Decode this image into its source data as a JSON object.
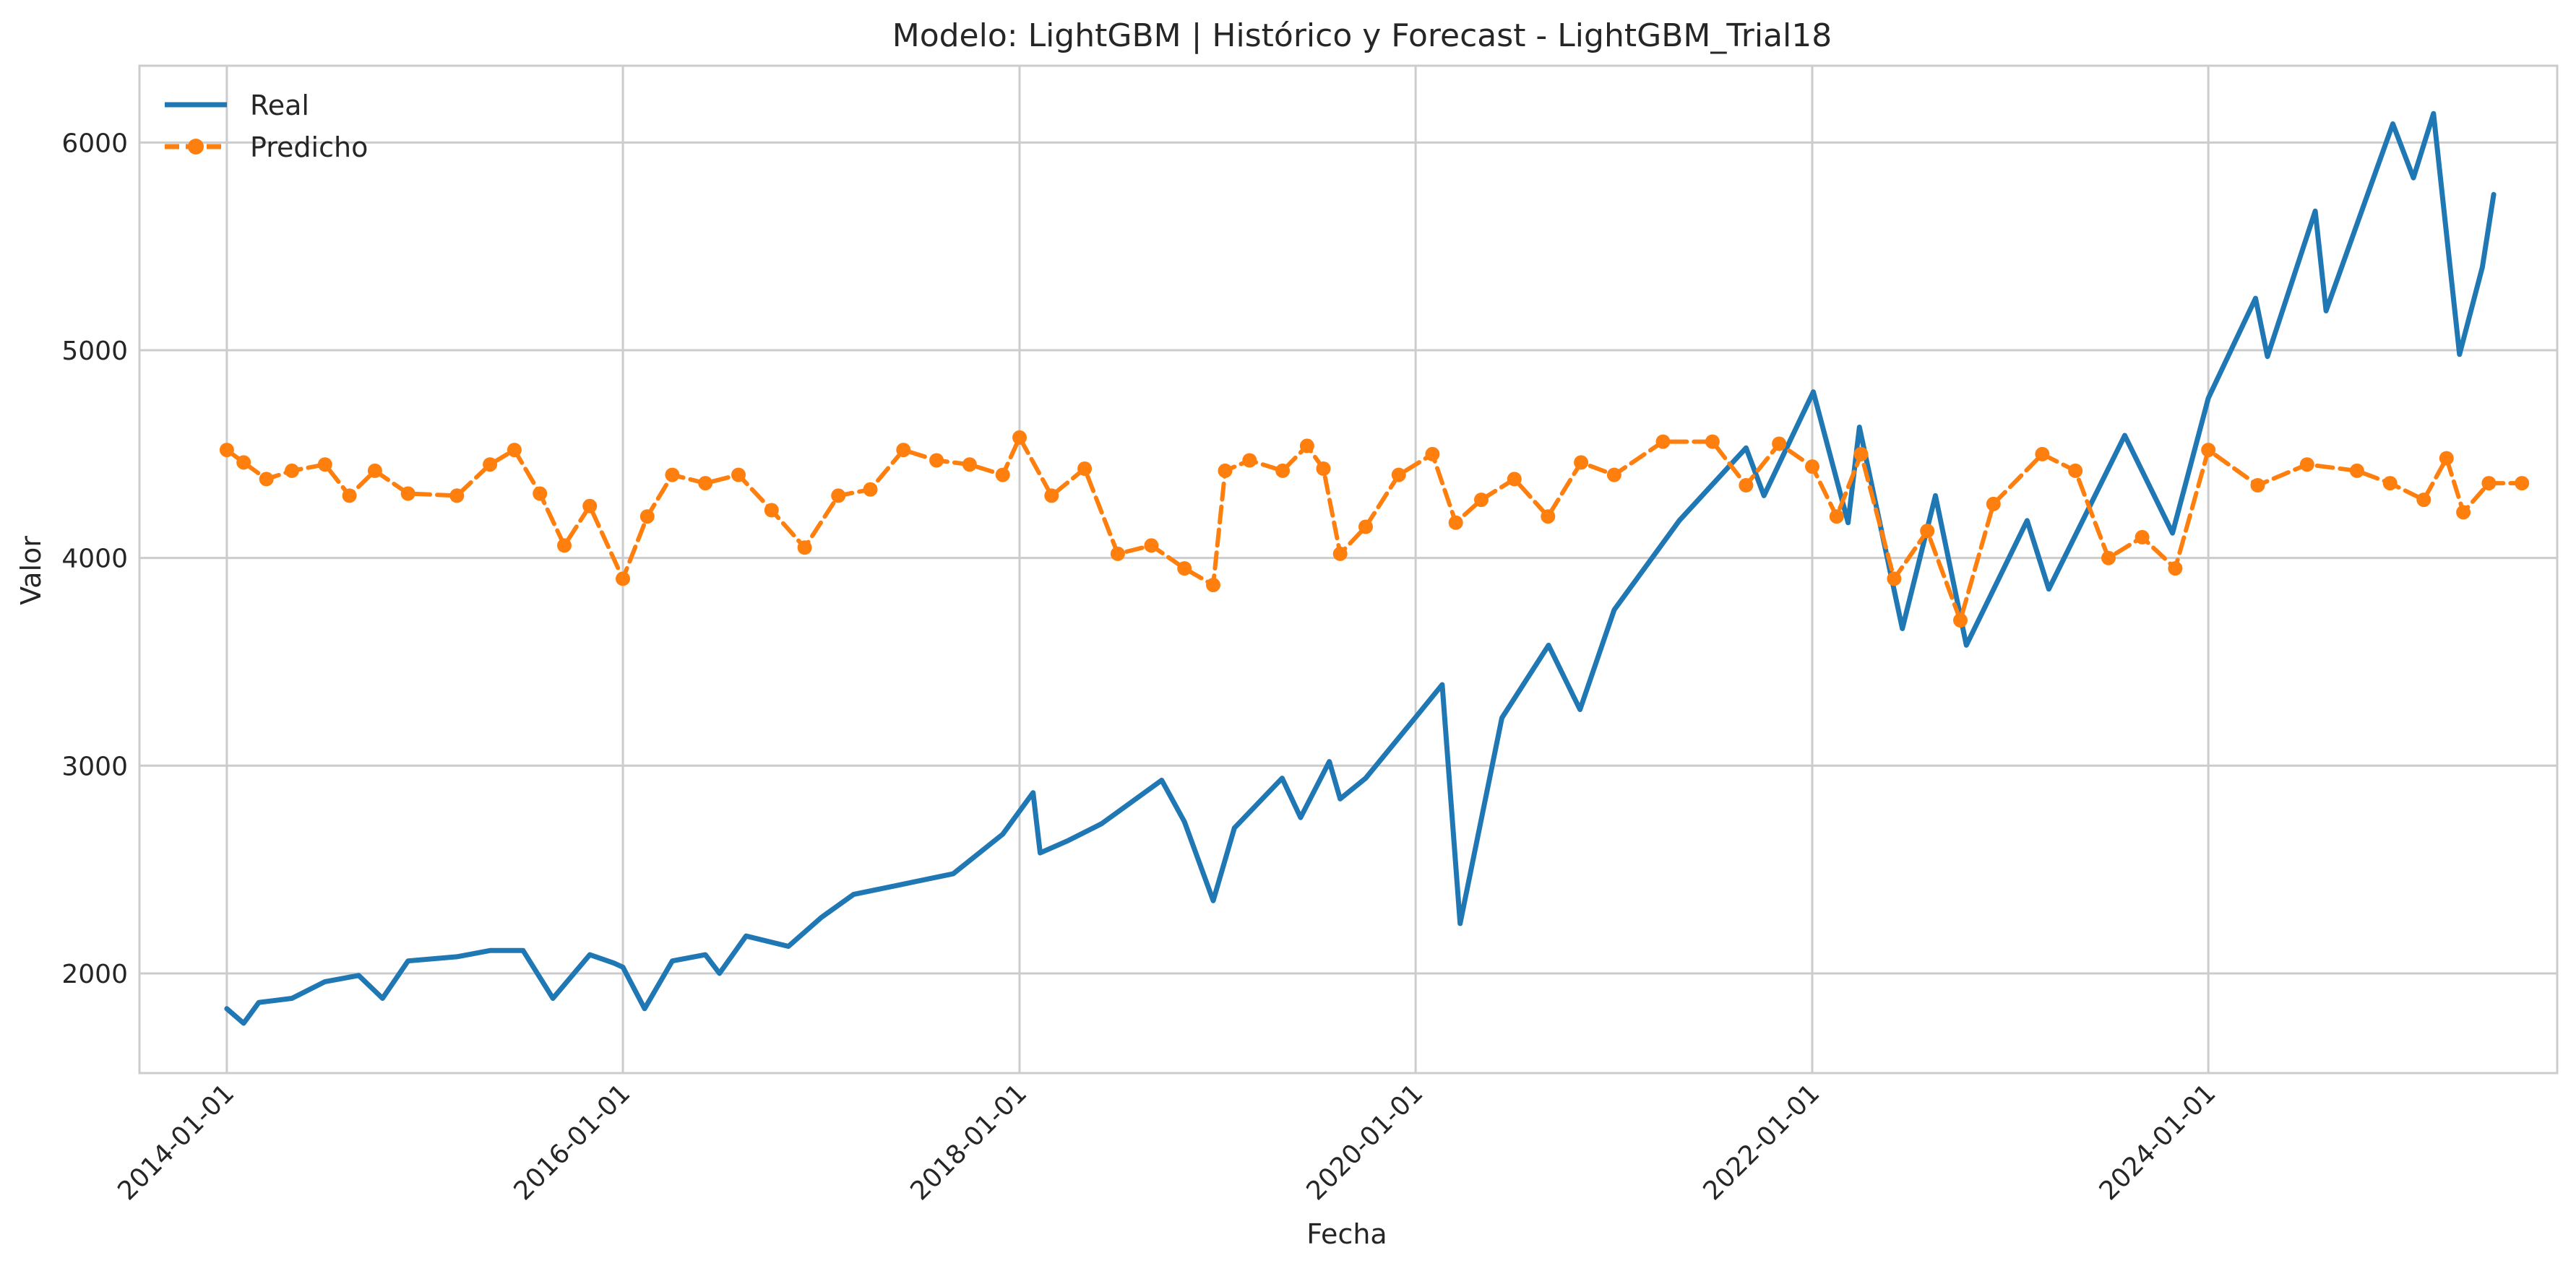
{
  "chart_data": {
    "type": "line",
    "title": "Modelo: LightGBM | Histórico y Forecast - LightGBM_Trial18",
    "xlabel": "Fecha",
    "ylabel": "Valor",
    "x_range": [
      "2013-07-24",
      "2025-10-05"
    ],
    "ylim": [
      1520,
      6370
    ],
    "x_ticks": [
      "2014-01-01",
      "2016-01-01",
      "2018-01-01",
      "2020-01-01",
      "2022-01-01",
      "2024-01-01"
    ],
    "y_ticks": [
      2000,
      3000,
      4000,
      5000,
      6000
    ],
    "grid": true,
    "legend_position": "top-left",
    "series": [
      {
        "name": "Real",
        "color": "#1f77b4",
        "style": "solid",
        "points": [
          [
            "2014-01-01",
            1830
          ],
          [
            "2014-02-01",
            1760
          ],
          [
            "2014-03-01",
            1860
          ],
          [
            "2014-05-01",
            1880
          ],
          [
            "2014-07-01",
            1960
          ],
          [
            "2014-09-01",
            1990
          ],
          [
            "2014-10-15",
            1880
          ],
          [
            "2014-12-01",
            2060
          ],
          [
            "2015-03-01",
            2080
          ],
          [
            "2015-05-01",
            2110
          ],
          [
            "2015-07-01",
            2110
          ],
          [
            "2015-08-25",
            1880
          ],
          [
            "2015-11-01",
            2090
          ],
          [
            "2015-12-15",
            2050
          ],
          [
            "2016-01-01",
            2030
          ],
          [
            "2016-02-10",
            1830
          ],
          [
            "2016-04-01",
            2060
          ],
          [
            "2016-06-01",
            2090
          ],
          [
            "2016-06-27",
            2000
          ],
          [
            "2016-08-15",
            2180
          ],
          [
            "2016-11-01",
            2130
          ],
          [
            "2017-01-01",
            2270
          ],
          [
            "2017-03-01",
            2380
          ],
          [
            "2017-06-01",
            2430
          ],
          [
            "2017-09-01",
            2480
          ],
          [
            "2017-12-01",
            2670
          ],
          [
            "2018-01-26",
            2870
          ],
          [
            "2018-02-08",
            2580
          ],
          [
            "2018-04-01",
            2640
          ],
          [
            "2018-06-01",
            2720
          ],
          [
            "2018-09-20",
            2930
          ],
          [
            "2018-11-01",
            2730
          ],
          [
            "2018-12-24",
            2350
          ],
          [
            "2019-02-01",
            2700
          ],
          [
            "2019-04-30",
            2940
          ],
          [
            "2019-06-03",
            2750
          ],
          [
            "2019-07-26",
            3020
          ],
          [
            "2019-08-15",
            2840
          ],
          [
            "2019-10-01",
            2940
          ],
          [
            "2019-12-31",
            3230
          ],
          [
            "2020-02-19",
            3390
          ],
          [
            "2020-03-23",
            2240
          ],
          [
            "2020-06-08",
            3230
          ],
          [
            "2020-09-02",
            3580
          ],
          [
            "2020-10-30",
            3270
          ],
          [
            "2021-01-01",
            3750
          ],
          [
            "2021-05-01",
            4180
          ],
          [
            "2021-09-01",
            4530
          ],
          [
            "2021-10-04",
            4300
          ],
          [
            "2022-01-03",
            4800
          ],
          [
            "2022-03-08",
            4170
          ],
          [
            "2022-03-29",
            4630
          ],
          [
            "2022-06-16",
            3660
          ],
          [
            "2022-08-16",
            4300
          ],
          [
            "2022-10-12",
            3580
          ],
          [
            "2023-02-01",
            4180
          ],
          [
            "2023-03-13",
            3850
          ],
          [
            "2023-07-31",
            4590
          ],
          [
            "2023-10-27",
            4120
          ],
          [
            "2024-01-01",
            4770
          ],
          [
            "2024-03-28",
            5250
          ],
          [
            "2024-04-19",
            4970
          ],
          [
            "2024-07-16",
            5670
          ],
          [
            "2024-08-05",
            5190
          ],
          [
            "2024-12-06",
            6090
          ],
          [
            "2025-01-13",
            5830
          ],
          [
            "2025-02-19",
            6140
          ],
          [
            "2025-04-08",
            4980
          ],
          [
            "2025-05-20",
            5400
          ],
          [
            "2025-06-10",
            5750
          ]
        ]
      },
      {
        "name": "Predicho",
        "color": "#ff7f0e",
        "style": "dashed-with-markers",
        "points": [
          [
            "2014-01-01",
            4520
          ],
          [
            "2014-02-01",
            4460
          ],
          [
            "2014-03-15",
            4380
          ],
          [
            "2014-05-01",
            4420
          ],
          [
            "2014-07-01",
            4450
          ],
          [
            "2014-08-15",
            4300
          ],
          [
            "2014-10-01",
            4420
          ],
          [
            "2014-12-01",
            4310
          ],
          [
            "2015-03-01",
            4300
          ],
          [
            "2015-05-01",
            4450
          ],
          [
            "2015-06-15",
            4520
          ],
          [
            "2015-08-01",
            4310
          ],
          [
            "2015-09-15",
            4060
          ],
          [
            "2015-11-01",
            4250
          ],
          [
            "2016-01-01",
            3900
          ],
          [
            "2016-02-15",
            4200
          ],
          [
            "2016-04-01",
            4400
          ],
          [
            "2016-06-01",
            4360
          ],
          [
            "2016-08-01",
            4400
          ],
          [
            "2016-10-01",
            4230
          ],
          [
            "2016-12-01",
            4050
          ],
          [
            "2017-02-01",
            4300
          ],
          [
            "2017-04-01",
            4330
          ],
          [
            "2017-06-01",
            4520
          ],
          [
            "2017-08-01",
            4470
          ],
          [
            "2017-10-01",
            4450
          ],
          [
            "2017-12-01",
            4400
          ],
          [
            "2018-01-01",
            4580
          ],
          [
            "2018-03-01",
            4300
          ],
          [
            "2018-05-01",
            4430
          ],
          [
            "2018-07-01",
            4020
          ],
          [
            "2018-09-01",
            4060
          ],
          [
            "2018-11-01",
            3950
          ],
          [
            "2018-12-24",
            3870
          ],
          [
            "2019-01-15",
            4420
          ],
          [
            "2019-03-01",
            4470
          ],
          [
            "2019-05-01",
            4420
          ],
          [
            "2019-06-15",
            4540
          ],
          [
            "2019-07-15",
            4430
          ],
          [
            "2019-08-15",
            4020
          ],
          [
            "2019-10-01",
            4150
          ],
          [
            "2019-12-01",
            4400
          ],
          [
            "2020-02-01",
            4500
          ],
          [
            "2020-03-15",
            4170
          ],
          [
            "2020-05-01",
            4280
          ],
          [
            "2020-07-01",
            4380
          ],
          [
            "2020-09-01",
            4200
          ],
          [
            "2020-11-01",
            4460
          ],
          [
            "2021-01-01",
            4400
          ],
          [
            "2021-04-01",
            4560
          ],
          [
            "2021-07-01",
            4560
          ],
          [
            "2021-09-01",
            4350
          ],
          [
            "2021-11-01",
            4550
          ],
          [
            "2022-01-01",
            4440
          ],
          [
            "2022-02-15",
            4200
          ],
          [
            "2022-04-01",
            4500
          ],
          [
            "2022-06-01",
            3900
          ],
          [
            "2022-08-01",
            4130
          ],
          [
            "2022-10-01",
            3700
          ],
          [
            "2022-12-01",
            4260
          ],
          [
            "2023-03-01",
            4500
          ],
          [
            "2023-05-01",
            4420
          ],
          [
            "2023-07-01",
            4000
          ],
          [
            "2023-09-01",
            4100
          ],
          [
            "2023-11-01",
            3950
          ],
          [
            "2024-01-01",
            4520
          ],
          [
            "2024-04-01",
            4350
          ],
          [
            "2024-07-01",
            4450
          ],
          [
            "2024-10-01",
            4420
          ],
          [
            "2024-12-01",
            4360
          ],
          [
            "2025-02-01",
            4280
          ],
          [
            "2025-03-15",
            4480
          ],
          [
            "2025-04-15",
            4220
          ],
          [
            "2025-06-01",
            4360
          ],
          [
            "2025-08-01",
            4360
          ]
        ]
      }
    ]
  }
}
